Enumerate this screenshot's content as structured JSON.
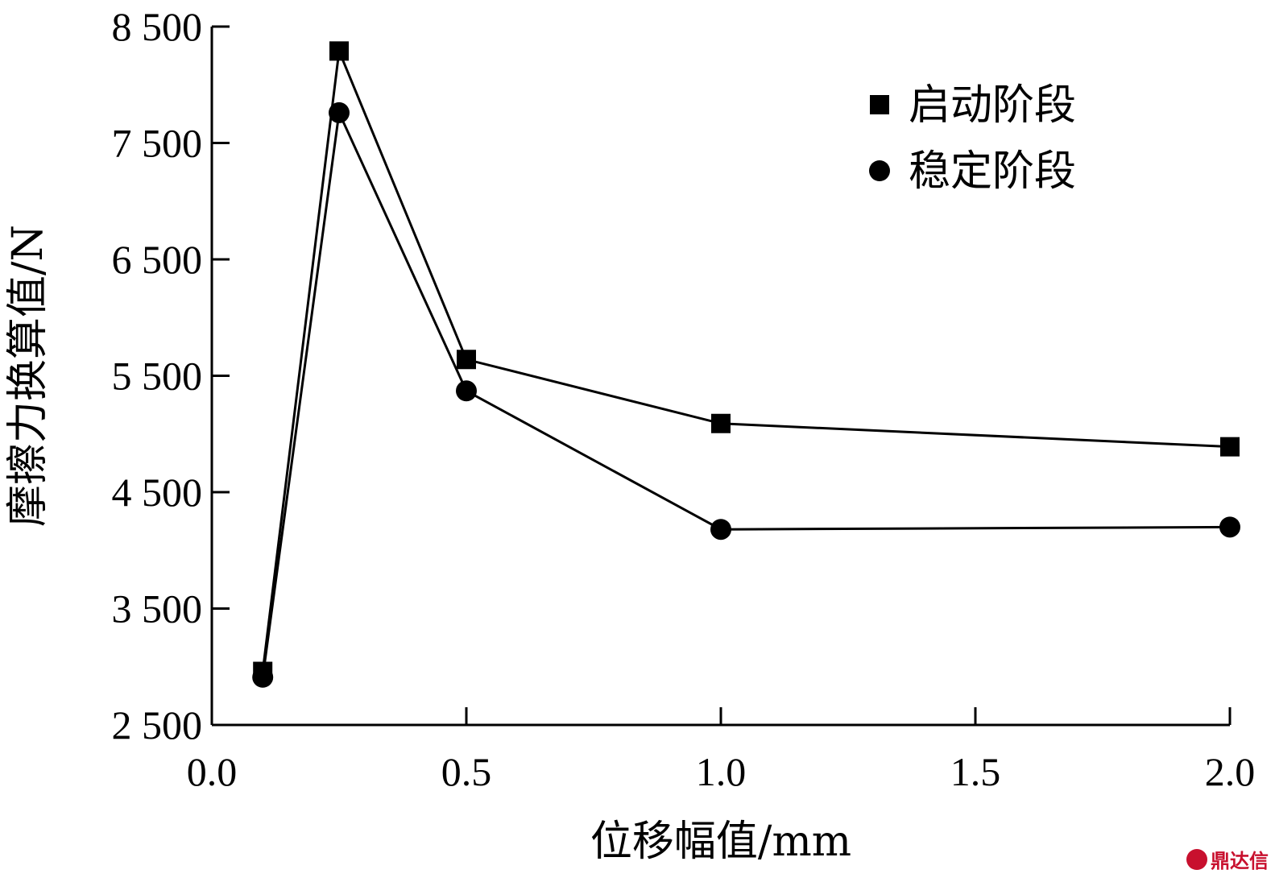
{
  "chart_data": {
    "type": "line",
    "xlabel": "位移幅值/mm",
    "ylabel": "摩擦力换算值/N",
    "xlim": [
      0.0,
      2.0
    ],
    "ylim": [
      2500,
      8500
    ],
    "x_ticks": [
      0.0,
      0.5,
      1.0,
      1.5,
      2.0
    ],
    "x_tick_labels": [
      "0.0",
      "0.5",
      "1.0",
      "1.5",
      "2.0"
    ],
    "y_ticks": [
      2500,
      3500,
      4500,
      5500,
      6500,
      7500,
      8500
    ],
    "y_tick_labels": [
      "2 500",
      "3 500",
      "4 500",
      "5 500",
      "6 500",
      "7 500",
      "8 500"
    ],
    "grid": false,
    "legend_position": "top-right",
    "series": [
      {
        "name": "启动阶段",
        "marker": "square",
        "x": [
          0.1,
          0.25,
          0.5,
          1.0,
          2.0
        ],
        "y": [
          2960,
          8290,
          5640,
          5090,
          4890
        ]
      },
      {
        "name": "稳定阶段",
        "marker": "circle",
        "x": [
          0.1,
          0.25,
          0.5,
          1.0,
          2.0
        ],
        "y": [
          2910,
          7760,
          5370,
          4180,
          4200
        ]
      }
    ]
  },
  "watermark": {
    "text": "鼎达信"
  }
}
